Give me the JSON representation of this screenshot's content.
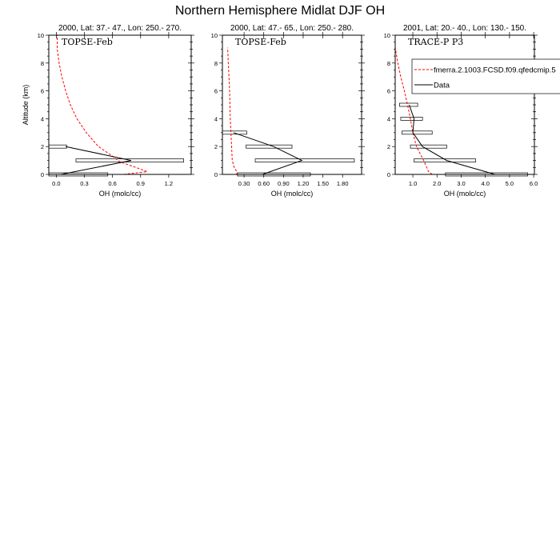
{
  "chart_data": {
    "title": "Northern Hemisphere Midlat DJF OH",
    "legend": {
      "placement": "top-right",
      "entries": [
        {
          "label": "fmerra.2.1003.FCSD.f09.qfedcmip.5",
          "color": "#ff0000",
          "style": "dashed"
        },
        {
          "label": "Data",
          "color": "#000000",
          "style": "solid"
        }
      ]
    },
    "panels": [
      {
        "type": "line",
        "subtitle": "2000, Lat: 37.- 47., Lon: 250.- 270.",
        "campaign": "TOPSE-Feb",
        "xlabel": "OH (molc/cc)",
        "ylabel": "Altitude (km)",
        "xlim": [
          -0.08,
          1.44
        ],
        "ylim": [
          0,
          10
        ],
        "xticks": [
          "0.0",
          "0.3",
          "0.6",
          "0.9",
          "1.2"
        ],
        "xtick_values": [
          0.0,
          0.3,
          0.6,
          0.9,
          1.2
        ],
        "yticks": [
          "0",
          "2",
          "4",
          "6",
          "8",
          "10"
        ],
        "model": {
          "x": [
            0.72,
            0.97,
            0.85,
            0.68,
            0.58,
            0.45,
            0.32,
            0.22,
            0.15,
            0.1,
            0.06,
            0.03,
            0.01,
            0.01
          ],
          "y": [
            0,
            0.2,
            0.5,
            0.9,
            1.4,
            2,
            3,
            4,
            5,
            6,
            7,
            8,
            9,
            10
          ]
        },
        "data": {
          "x": [
            0.05,
            0.8,
            0.1
          ],
          "y": [
            0,
            1,
            2
          ],
          "lo": [
            -0.08,
            0.21,
            -0.08
          ],
          "hi": [
            0.55,
            1.36,
            0.11
          ]
        }
      },
      {
        "type": "line",
        "subtitle": "2000, Lat: 47.- 65., Lon: 250.- 280.",
        "campaign": "TOPSE-Feb",
        "xlabel": "OH (molc/cc)",
        "ylabel": "",
        "xlim": [
          -0.03,
          2.09
        ],
        "ylim": [
          0,
          10
        ],
        "xticks": [
          "0.30",
          "0.60",
          "0.90",
          "1.20",
          "1.50",
          "1.80"
        ],
        "xtick_values": [
          0.3,
          0.6,
          0.9,
          1.2,
          1.5,
          1.8
        ],
        "yticks": [
          "0",
          "2",
          "4",
          "6",
          "8",
          "10"
        ],
        "model": {
          "x": [
            0.18,
            0.2,
            0.15,
            0.12,
            0.11,
            0.1,
            0.09,
            0.08,
            0.06,
            0.05
          ],
          "y": [
            0,
            0.1,
            0.5,
            1,
            2,
            3,
            4,
            6,
            8,
            9.1
          ]
        },
        "data": {
          "x": [
            0.58,
            1.18,
            0.75,
            0.14
          ],
          "y": [
            0,
            1,
            2,
            3
          ],
          "lo": [
            0.2,
            0.47,
            0.33,
            -0.03
          ],
          "hi": [
            1.31,
            1.98,
            1.03,
            0.34
          ]
        }
      },
      {
        "type": "line",
        "subtitle": "2001, Lat: 20.- 40., Lon: 130.- 150.",
        "campaign": "TRACE-P P3",
        "xlabel": "OH (molc/cc)",
        "ylabel": "",
        "xlim": [
          0.27,
          6.03
        ],
        "ylim": [
          0,
          10
        ],
        "xticks": [
          "1.0",
          "2.0",
          "3.0",
          "4.0",
          "5.0",
          "6.0"
        ],
        "xtick_values": [
          1,
          2,
          3,
          4,
          5,
          6
        ],
        "yticks": [
          "0",
          "2",
          "4",
          "6",
          "8",
          "10"
        ],
        "model": {
          "x": [
            1.8,
            1.65,
            1.45,
            1.15,
            1.0,
            0.9,
            0.78,
            0.65,
            0.5,
            0.38,
            0.27
          ],
          "y": [
            0,
            0.2,
            1,
            2,
            3,
            4,
            5,
            6,
            7,
            8,
            9.1
          ]
        },
        "data": {
          "x": [
            4.4,
            2.4,
            1.4,
            1.0,
            1.05,
            0.85
          ],
          "y": [
            0,
            1,
            2,
            3,
            4,
            5
          ],
          "lo": [
            2.35,
            1.05,
            0.9,
            0.55,
            0.5,
            0.45
          ],
          "hi": [
            5.75,
            3.6,
            2.4,
            1.8,
            1.4,
            1.2
          ]
        }
      }
    ]
  }
}
